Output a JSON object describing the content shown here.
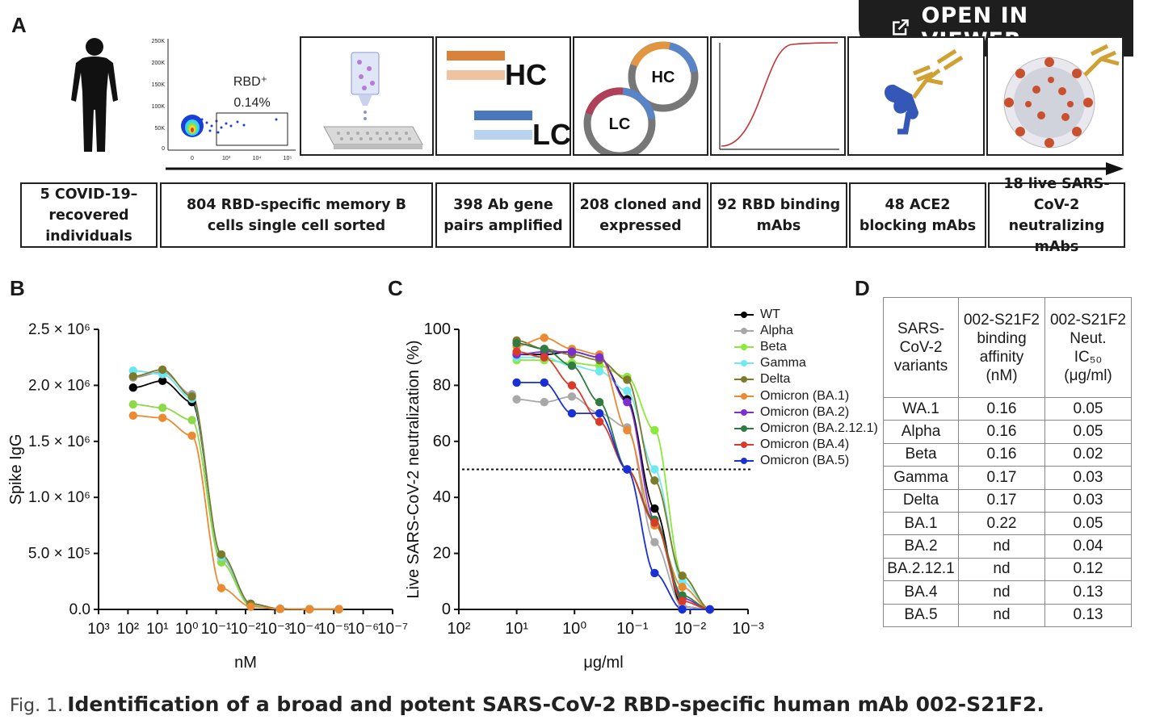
{
  "viewer_button": {
    "label": "OPEN IN VIEWER",
    "icon": "external-link-icon"
  },
  "panels": {
    "a": "A",
    "b": "B",
    "c": "C",
    "d": "D"
  },
  "flow": {
    "gate_label": "RBD⁺",
    "gate_percent": "0.14%",
    "flow_yticks": [
      "250K",
      "200K",
      "150K",
      "100K",
      "50K",
      "0"
    ],
    "flow_xticks": [
      "0",
      "10³",
      "10⁴",
      "10⁵"
    ],
    "hc_label": "HC",
    "lc_label": "LC",
    "steps": [
      "5 COVID-19–\nrecovered\nindividuals",
      "804 RBD-specific memory B\ncells single cell sorted",
      "398 Ab gene\npairs amplified",
      "208 cloned and\nexpressed",
      "92 RBD binding\nmAbs",
      "48 ACE2\nblocking mAbs",
      "18 live SARS-\nCoV-2 neutralizing\nmAbs"
    ]
  },
  "chart_data": [
    {
      "type": "line",
      "panel": "B",
      "xlabel": "nM",
      "ylabel": "Spike IgG",
      "x_scale": "log, reversed",
      "xlim": [
        1000,
        1e-07
      ],
      "ylim": [
        0,
        2500000
      ],
      "x_ticks": [
        "10³",
        "10²",
        "10¹",
        "10⁰",
        "10⁻¹",
        "10⁻²",
        "10⁻³",
        "10⁻⁴",
        "10⁻⁵",
        "10⁻⁶",
        "10⁻⁷"
      ],
      "y_ticks": [
        "0.0",
        "5.0 × 10⁵",
        "1.0 × 10⁶",
        "1.5 × 10⁶",
        "2.0 × 10⁶",
        "2.5 × 10⁶"
      ],
      "x": [
        66.7,
        6.67,
        0.667,
        0.0667,
        0.00667,
        0.000667,
        6.67e-05,
        6.67e-06
      ],
      "series": [
        {
          "color": "#000000",
          "values": [
            1980000,
            2040000,
            1850000,
            480000,
            50000,
            5000,
            2000,
            2000
          ]
        },
        {
          "color": "#a0a0a0",
          "values": [
            2070000,
            2120000,
            1920000,
            460000,
            40000,
            5000,
            2000,
            2000
          ]
        },
        {
          "color": "#8fd84a",
          "values": [
            1830000,
            1800000,
            1690000,
            420000,
            30000,
            5000,
            2000,
            2000
          ]
        },
        {
          "color": "#67e7ef",
          "values": [
            2130000,
            2100000,
            1880000,
            470000,
            45000,
            5000,
            2000,
            2000
          ]
        },
        {
          "color": "#7a7a2a",
          "values": [
            2080000,
            2140000,
            1900000,
            490000,
            50000,
            5000,
            2000,
            2000
          ]
        },
        {
          "color": "#ea8a33",
          "values": [
            1730000,
            1710000,
            1550000,
            190000,
            25000,
            5000,
            2000,
            2000
          ]
        }
      ]
    },
    {
      "type": "line",
      "panel": "C",
      "xlabel": "μg/ml",
      "ylabel": "Live SARS-CoV-2 neutralization (%)",
      "x_scale": "log, reversed",
      "xlim": [
        100,
        0.001
      ],
      "ylim": [
        0,
        100
      ],
      "reference_line_y": 50,
      "x_ticks": [
        "10²",
        "10¹",
        "10⁰",
        "10⁻¹",
        "10⁻²",
        "10⁻³"
      ],
      "y_ticks": [
        "0",
        "20",
        "40",
        "60",
        "80",
        "100"
      ],
      "x": [
        10,
        3.33,
        1.11,
        0.37,
        0.123,
        0.0412,
        0.0137,
        0.00457
      ],
      "series": [
        {
          "name": "WT",
          "color": "#000000",
          "values": [
            91,
            91,
            92,
            90,
            75,
            36,
            1,
            0
          ]
        },
        {
          "name": "Alpha",
          "color": "#a8a8a8",
          "values": [
            75,
            74,
            76,
            70,
            65,
            24,
            1,
            0
          ]
        },
        {
          "name": "Beta",
          "color": "#8be83c",
          "values": [
            89,
            89,
            88,
            87,
            83,
            64,
            12,
            0
          ]
        },
        {
          "name": "Gamma",
          "color": "#6fe9ef",
          "values": [
            90,
            90,
            87,
            85,
            78,
            50,
            10,
            0
          ]
        },
        {
          "name": "Delta",
          "color": "#7d7a2b",
          "values": [
            96,
            93,
            91,
            89,
            82,
            46,
            12,
            0
          ]
        },
        {
          "name": "Omicron (BA.1)",
          "color": "#ea8a33",
          "values": [
            94,
            97,
            93,
            91,
            64,
            30,
            8,
            0
          ]
        },
        {
          "name": "Omicron (BA.2)",
          "color": "#7b2fd0",
          "values": [
            91,
            92,
            92,
            90,
            74,
            32,
            4,
            0
          ]
        },
        {
          "name": "Omicron (BA.2.12.1)",
          "color": "#2f7b42",
          "values": [
            95,
            93,
            87,
            74,
            50,
            32,
            5,
            0
          ]
        },
        {
          "name": "Omicron (BA.4)",
          "color": "#d83b2a",
          "values": [
            92,
            90,
            80,
            67,
            50,
            31,
            3,
            0
          ]
        },
        {
          "name": "Omicron (BA.5)",
          "color": "#1930d8",
          "values": [
            81,
            81,
            70,
            70,
            50,
            13,
            0,
            0
          ]
        }
      ]
    },
    {
      "type": "table",
      "panel": "D",
      "columns": [
        "SARS-\nCoV-2\nvariants",
        "002-S21F2\nbinding\naffinity\n(nM)",
        "002-S21F2\nNeut.\nIC₅₀\n(μg/ml)"
      ],
      "rows": [
        [
          "WA.1",
          "0.16",
          "0.05"
        ],
        [
          "Alpha",
          "0.16",
          "0.05"
        ],
        [
          "Beta",
          "0.16",
          "0.02"
        ],
        [
          "Gamma",
          "0.17",
          "0.03"
        ],
        [
          "Delta",
          "0.17",
          "0.03"
        ],
        [
          "BA.1",
          "0.22",
          "0.05"
        ],
        [
          "BA.2",
          "nd",
          "0.04"
        ],
        [
          "BA.2.12.1",
          "nd",
          "0.12"
        ],
        [
          "BA.4",
          "nd",
          "0.13"
        ],
        [
          "BA.5",
          "nd",
          "0.13"
        ]
      ]
    }
  ],
  "caption": {
    "fig_label": "Fig. 1.",
    "title": "Identification of a broad and potent SARS-CoV-2 RBD-specific human mAb 002-S21F2."
  }
}
